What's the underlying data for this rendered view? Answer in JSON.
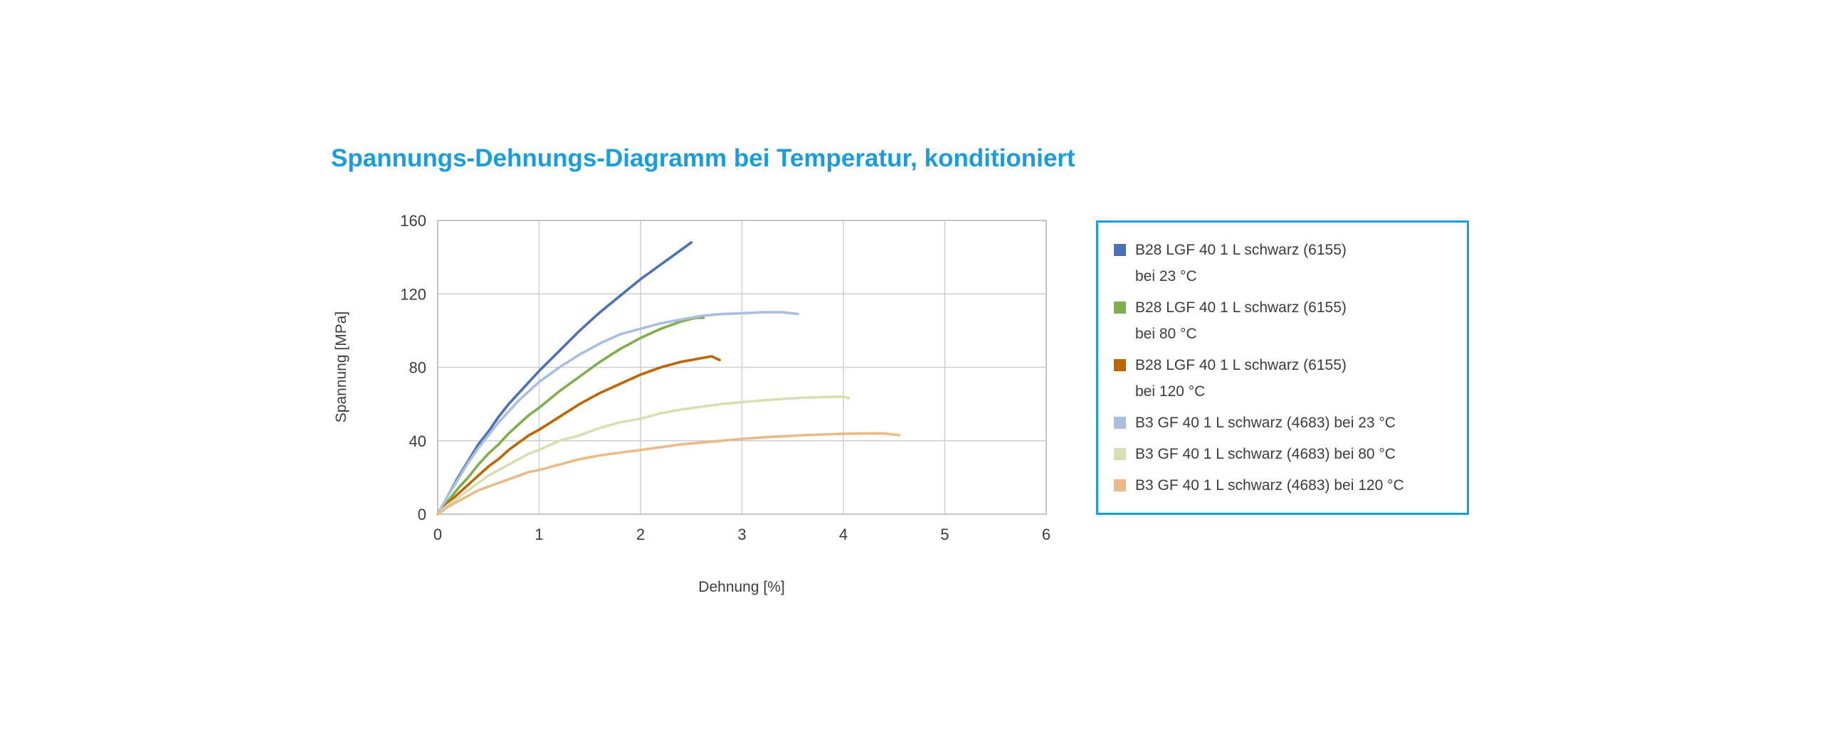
{
  "colors": {
    "accent": "#1a9dde",
    "grid": "#cfcfcf",
    "border": "#b4b4b4",
    "tick_text": "#3c3c3c"
  },
  "chart_data": {
    "type": "line",
    "title": "Spannungs-Dehnungs-Diagramm bei Temperatur, konditioniert",
    "xlabel": "Dehnung [%]",
    "ylabel": "Spannung [MPa]",
    "xlim": [
      0,
      6
    ],
    "ylim": [
      0,
      160
    ],
    "xticks": [
      0,
      1,
      2,
      3,
      4,
      5,
      6
    ],
    "yticks": [
      0,
      40,
      80,
      120,
      160
    ],
    "grid": true,
    "legend_position": "right-outside",
    "series": [
      {
        "name": "B28 LGF 40 1 L schwarz (6155) bei 23 °C",
        "legend_lines": [
          "B28 LGF 40 1 L schwarz (6155)",
          "bei 23 °C"
        ],
        "color": "#4a72b4",
        "points": [
          [
            0,
            0
          ],
          [
            0.1,
            10
          ],
          [
            0.2,
            20
          ],
          [
            0.3,
            29
          ],
          [
            0.4,
            38
          ],
          [
            0.5,
            45
          ],
          [
            0.6,
            53
          ],
          [
            0.7,
            60
          ],
          [
            0.8,
            66
          ],
          [
            0.9,
            72
          ],
          [
            1.0,
            78
          ],
          [
            1.2,
            89
          ],
          [
            1.4,
            100
          ],
          [
            1.6,
            110
          ],
          [
            1.8,
            119
          ],
          [
            2.0,
            128
          ],
          [
            2.2,
            136
          ],
          [
            2.35,
            142
          ],
          [
            2.5,
            148
          ]
        ]
      },
      {
        "name": "B28 LGF 40 1 L schwarz (6155) bei 80 °C",
        "legend_lines": [
          "B28 LGF 40 1 L schwarz (6155)",
          "bei 80 °C"
        ],
        "color": "#7fae4a",
        "points": [
          [
            0,
            0
          ],
          [
            0.1,
            7
          ],
          [
            0.2,
            14
          ],
          [
            0.3,
            20
          ],
          [
            0.4,
            27
          ],
          [
            0.5,
            33
          ],
          [
            0.6,
            38
          ],
          [
            0.7,
            44
          ],
          [
            0.8,
            49
          ],
          [
            0.9,
            54
          ],
          [
            1.0,
            58
          ],
          [
            1.2,
            67
          ],
          [
            1.4,
            75
          ],
          [
            1.6,
            83
          ],
          [
            1.8,
            90
          ],
          [
            2.0,
            96
          ],
          [
            2.2,
            101
          ],
          [
            2.4,
            105
          ],
          [
            2.55,
            107
          ],
          [
            2.62,
            107
          ]
        ]
      },
      {
        "name": "B28 LGF 40 1 L schwarz (6155) bei 120 °C",
        "legend_lines": [
          "B28 LGF 40 1 L schwarz (6155)",
          "bei 120 °C"
        ],
        "color": "#bd6600",
        "points": [
          [
            0,
            0
          ],
          [
            0.1,
            6
          ],
          [
            0.2,
            11
          ],
          [
            0.3,
            16
          ],
          [
            0.4,
            21
          ],
          [
            0.5,
            26
          ],
          [
            0.6,
            30
          ],
          [
            0.7,
            35
          ],
          [
            0.8,
            39
          ],
          [
            0.9,
            43
          ],
          [
            1.0,
            46
          ],
          [
            1.2,
            53
          ],
          [
            1.4,
            60
          ],
          [
            1.6,
            66
          ],
          [
            1.8,
            71
          ],
          [
            2.0,
            76
          ],
          [
            2.2,
            80
          ],
          [
            2.4,
            83
          ],
          [
            2.6,
            85
          ],
          [
            2.7,
            86
          ],
          [
            2.78,
            84
          ]
        ]
      },
      {
        "name": "B3 GF 40 1 L schwarz (4683) bei 23 °C",
        "legend_lines": [
          "B3 GF 40 1 L schwarz (4683) bei 23 °C"
        ],
        "color": "#aabfe0",
        "points": [
          [
            0,
            0
          ],
          [
            0.1,
            10
          ],
          [
            0.2,
            19
          ],
          [
            0.3,
            28
          ],
          [
            0.4,
            36
          ],
          [
            0.5,
            43
          ],
          [
            0.6,
            50
          ],
          [
            0.7,
            56
          ],
          [
            0.8,
            62
          ],
          [
            0.9,
            67
          ],
          [
            1.0,
            72
          ],
          [
            1.2,
            80
          ],
          [
            1.4,
            87
          ],
          [
            1.6,
            93
          ],
          [
            1.8,
            98
          ],
          [
            2.0,
            101
          ],
          [
            2.2,
            104
          ],
          [
            2.4,
            106
          ],
          [
            2.6,
            108
          ],
          [
            2.8,
            109
          ],
          [
            3.0,
            109.5
          ],
          [
            3.2,
            110
          ],
          [
            3.4,
            110
          ],
          [
            3.55,
            109
          ]
        ]
      },
      {
        "name": "B3 GF 40 1 L schwarz (4683) bei 80 °C",
        "legend_lines": [
          "B3 GF 40 1 L schwarz (4683) bei 80 °C"
        ],
        "color": "#d6e0b0",
        "points": [
          [
            0,
            0
          ],
          [
            0.1,
            5
          ],
          [
            0.2,
            9
          ],
          [
            0.3,
            13
          ],
          [
            0.4,
            17
          ],
          [
            0.5,
            21
          ],
          [
            0.6,
            24
          ],
          [
            0.7,
            27
          ],
          [
            0.8,
            30
          ],
          [
            0.9,
            33
          ],
          [
            1.0,
            35
          ],
          [
            1.2,
            40
          ],
          [
            1.4,
            43
          ],
          [
            1.6,
            47
          ],
          [
            1.8,
            50
          ],
          [
            2.0,
            52
          ],
          [
            2.2,
            55
          ],
          [
            2.4,
            57
          ],
          [
            2.6,
            58.5
          ],
          [
            2.8,
            60
          ],
          [
            3.0,
            61
          ],
          [
            3.2,
            62
          ],
          [
            3.4,
            62.8
          ],
          [
            3.6,
            63.4
          ],
          [
            3.8,
            63.8
          ],
          [
            4.0,
            64
          ],
          [
            4.05,
            63.2
          ]
        ]
      },
      {
        "name": "B3 GF 40 1 L schwarz (4683) bei 120 °C",
        "legend_lines": [
          "B3 GF 40 1 L schwarz (4683) bei 120 °C"
        ],
        "color": "#eabb86",
        "points": [
          [
            0,
            0
          ],
          [
            0.1,
            4
          ],
          [
            0.2,
            7
          ],
          [
            0.3,
            10
          ],
          [
            0.4,
            13
          ],
          [
            0.5,
            15
          ],
          [
            0.6,
            17
          ],
          [
            0.7,
            19
          ],
          [
            0.8,
            21
          ],
          [
            0.9,
            23
          ],
          [
            1.0,
            24
          ],
          [
            1.2,
            27
          ],
          [
            1.4,
            30
          ],
          [
            1.6,
            32
          ],
          [
            1.8,
            33.5
          ],
          [
            2.0,
            35
          ],
          [
            2.2,
            36.5
          ],
          [
            2.4,
            38
          ],
          [
            2.6,
            39
          ],
          [
            2.8,
            40
          ],
          [
            3.0,
            41
          ],
          [
            3.2,
            41.8
          ],
          [
            3.4,
            42.4
          ],
          [
            3.6,
            43
          ],
          [
            3.8,
            43.4
          ],
          [
            4.0,
            43.8
          ],
          [
            4.2,
            44
          ],
          [
            4.4,
            44
          ],
          [
            4.55,
            43
          ]
        ]
      }
    ]
  }
}
